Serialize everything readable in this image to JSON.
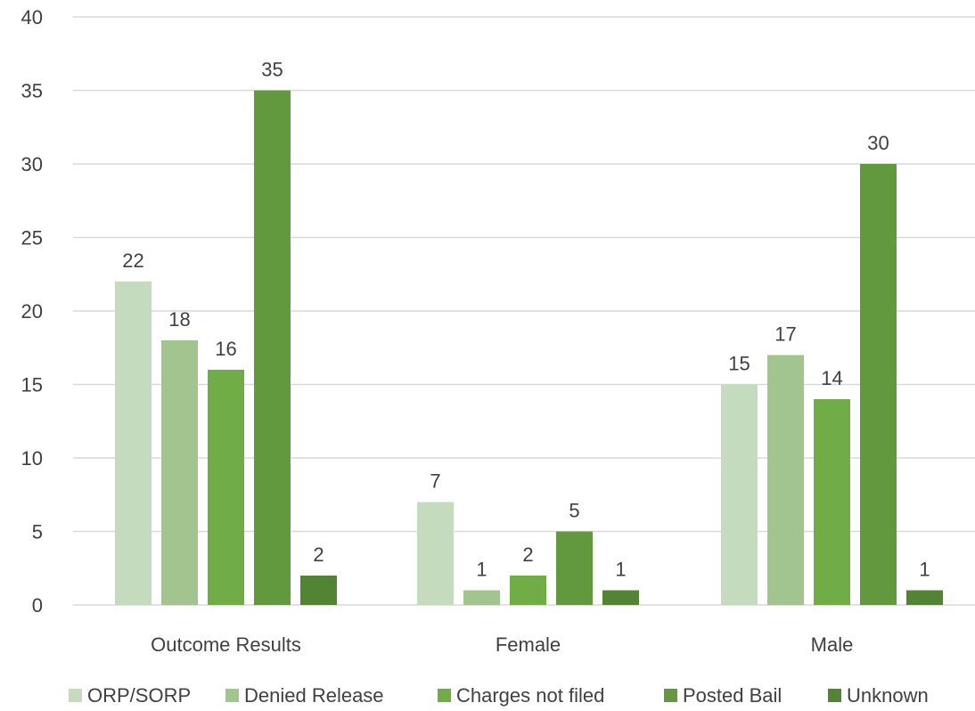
{
  "chart_data": {
    "type": "bar",
    "categories": [
      "Outcome Results",
      "Female",
      "Male"
    ],
    "series": [
      {
        "name": "ORP/SORP",
        "values": [
          22,
          7,
          15
        ],
        "color": "#c5dbbd"
      },
      {
        "name": "Denied Release",
        "values": [
          18,
          1,
          17
        ],
        "color": "#a2c58f"
      },
      {
        "name": "Charges not filed",
        "values": [
          16,
          2,
          14
        ],
        "color": "#70ad47"
      },
      {
        "name": "Posted Bail",
        "values": [
          35,
          5,
          30
        ],
        "color": "#62993e"
      },
      {
        "name": "Unknown",
        "values": [
          2,
          1,
          1
        ],
        "color": "#528533"
      }
    ],
    "ylim": [
      0,
      40
    ],
    "yticks": [
      0,
      5,
      10,
      15,
      20,
      25,
      30,
      35,
      40
    ],
    "grid": true,
    "legend_position": "bottom",
    "data_labels": true
  }
}
